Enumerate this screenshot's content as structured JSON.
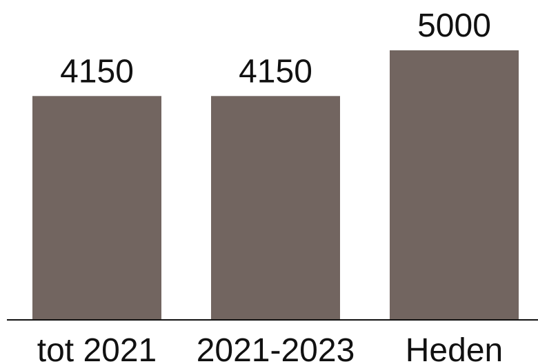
{
  "chart_data": {
    "type": "bar",
    "categories": [
      "tot 2021",
      "2021-2023",
      "Heden"
    ],
    "values": [
      4150,
      4150,
      5000
    ],
    "data_labels": [
      "4150",
      "4150",
      "5000"
    ],
    "title": "",
    "xlabel": "",
    "ylabel": "",
    "ylim": [
      0,
      5000
    ],
    "grid": false,
    "legend": "none",
    "colors": {
      "bar": "#726560",
      "axis": "#111111",
      "text": "#111111"
    }
  }
}
